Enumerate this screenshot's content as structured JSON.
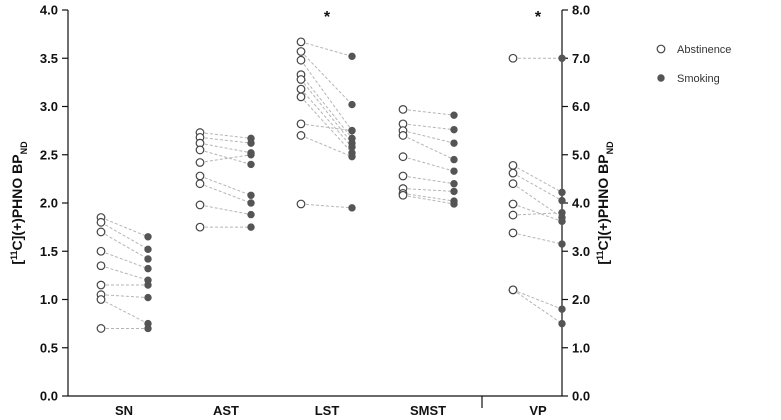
{
  "chart_data": {
    "type": "scatter",
    "subtype": "paired-dot-plot",
    "left_axis": {
      "label": "[11C](+)PHNO BPND",
      "ylim": [
        0.0,
        4.0
      ],
      "ticks": [
        "0.0",
        "0.5",
        "1.0",
        "1.5",
        "2.0",
        "2.5",
        "3.0",
        "3.5",
        "4.0"
      ],
      "applies_to": [
        "SN",
        "AST",
        "LST",
        "SMST"
      ]
    },
    "right_axis": {
      "label": "[11C](+)PHNO BPND",
      "ylim": [
        0.0,
        8.0
      ],
      "ticks": [
        "0.0",
        "1.0",
        "2.0",
        "3.0",
        "4.0",
        "5.0",
        "6.0",
        "7.0",
        "8.0"
      ],
      "applies_to": [
        "VP"
      ]
    },
    "categories": [
      "SN",
      "AST",
      "LST",
      "SMST",
      "VP"
    ],
    "legend": {
      "placement": "top-right",
      "entries": [
        {
          "name": "Abstinence",
          "marker": "open-circle"
        },
        {
          "name": "Smoking",
          "marker": "filled-circle"
        }
      ]
    },
    "significance": {
      "LST": "*",
      "VP": "*"
    },
    "pairs": {
      "SN": [
        [
          1.85,
          1.65
        ],
        [
          1.8,
          1.52
        ],
        [
          1.7,
          1.42
        ],
        [
          1.5,
          1.32
        ],
        [
          1.35,
          1.2
        ],
        [
          1.15,
          1.15
        ],
        [
          1.05,
          1.02
        ],
        [
          1.0,
          0.75
        ],
        [
          0.7,
          0.7
        ]
      ],
      "AST": [
        [
          2.73,
          2.67
        ],
        [
          2.68,
          2.62
        ],
        [
          2.62,
          2.52
        ],
        [
          2.55,
          2.4
        ],
        [
          2.42,
          2.5
        ],
        [
          2.28,
          2.08
        ],
        [
          2.2,
          2.0
        ],
        [
          1.98,
          1.88
        ],
        [
          1.75,
          1.75
        ]
      ],
      "LST": [
        [
          3.67,
          3.52
        ],
        [
          3.57,
          3.02
        ],
        [
          3.48,
          2.75
        ],
        [
          3.33,
          2.67
        ],
        [
          3.28,
          2.62
        ],
        [
          3.18,
          2.58
        ],
        [
          3.1,
          2.52
        ],
        [
          2.82,
          2.75
        ],
        [
          2.7,
          2.48
        ],
        [
          1.99,
          1.95
        ]
      ],
      "SMST": [
        [
          2.97,
          2.91
        ],
        [
          2.82,
          2.76
        ],
        [
          2.75,
          2.62
        ],
        [
          2.7,
          2.45
        ],
        [
          2.48,
          2.33
        ],
        [
          2.28,
          2.2
        ],
        [
          2.15,
          2.12
        ],
        [
          2.1,
          2.02
        ],
        [
          2.08,
          1.99
        ]
      ],
      "VP": [
        [
          7.0,
          7.0
        ],
        [
          4.78,
          4.22
        ],
        [
          4.62,
          4.05
        ],
        [
          4.4,
          3.7
        ],
        [
          3.98,
          3.62
        ],
        [
          3.75,
          3.8
        ],
        [
          3.38,
          3.15
        ],
        [
          2.2,
          1.8
        ],
        [
          2.2,
          1.5
        ]
      ]
    }
  },
  "colors": {
    "axis": "#111111",
    "abstinence_stroke": "#444444",
    "smoking_fill": "#555555",
    "connector": "#b5b5b5",
    "background": "#ffffff"
  }
}
